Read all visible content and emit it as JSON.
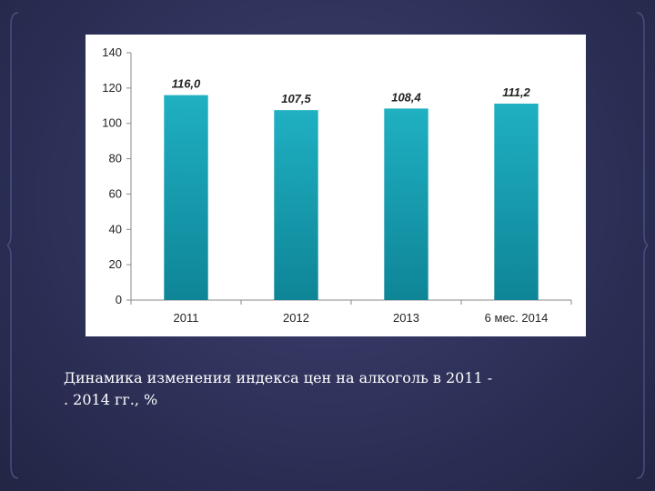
{
  "caption": {
    "line1": "Динамика изменения индекса цен на алкоголь в 2011 -",
    "line2": ". 2014 гг., %"
  },
  "colors": {
    "bar_top": "#1fb0c2",
    "bar_bottom": "#0e8597",
    "axis": "#8a8a8a",
    "text": "#222222"
  },
  "chart_data": {
    "type": "bar",
    "categories": [
      "2011",
      "2012",
      "2013",
      "6 мес. 2014"
    ],
    "values": [
      116.0,
      107.5,
      108.4,
      111.2
    ],
    "data_labels": [
      "116,0",
      "107,5",
      "108,4",
      "111,2"
    ],
    "yticks": [
      "0",
      "20",
      "40",
      "60",
      "80",
      "100",
      "120",
      "140"
    ],
    "ylim": [
      0,
      140
    ],
    "grid": false,
    "legend": "none"
  }
}
